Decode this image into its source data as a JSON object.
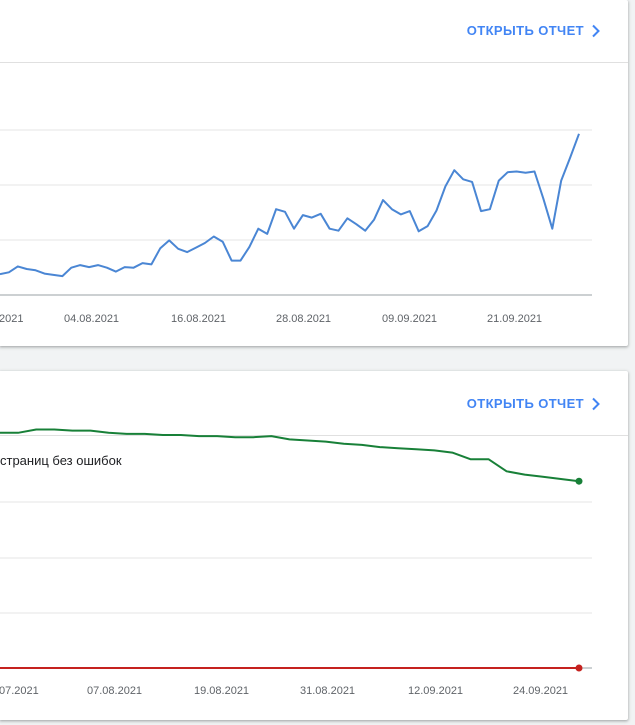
{
  "cards": [
    {
      "report_link": "ОТКРЫТЬ ОТЧЕТ",
      "chart_data": {
        "type": "line",
        "x_tick_labels": [
          "2021",
          "04.08.2021",
          "16.08.2021",
          "28.08.2021",
          "09.09.2021",
          "21.09.2021"
        ],
        "grid": true,
        "series": [
          {
            "color": "#4a86d4",
            "values": [
              0.6,
              0.75,
              1.2,
              1.0,
              0.9,
              0.65,
              0.55,
              0.45,
              1.1,
              1.3,
              1.15,
              1.3,
              1.1,
              0.8,
              1.15,
              1.1,
              1.45,
              1.35,
              2.6,
              3.2,
              2.55,
              2.3,
              2.65,
              3.0,
              3.5,
              3.1,
              1.65,
              1.65,
              2.7,
              4.1,
              3.7,
              5.6,
              5.4,
              4.1,
              5.15,
              4.95,
              5.25,
              4.1,
              3.95,
              4.9,
              4.45,
              3.95,
              4.8,
              6.3,
              5.6,
              5.2,
              5.45,
              3.9,
              4.3,
              5.5,
              7.35,
              8.6,
              7.9,
              7.7,
              5.45,
              5.6,
              7.8,
              8.45,
              8.5,
              8.4,
              8.5,
              6.4,
              4.1,
              7.8,
              9.55,
              11.4
            ]
          }
        ]
      }
    },
    {
      "report_link": "ОТКРЫТЬ ОТЧЕТ",
      "legend": "страниц без ошибок",
      "chart_data": {
        "type": "line",
        "x_tick_labels": [
          "07.2021",
          "07.08.2021",
          "19.08.2021",
          "31.08.2021",
          "12.09.2021",
          "24.09.2021"
        ],
        "grid": true,
        "series": [
          {
            "color": "#188038",
            "values": [
              10.6,
              10.6,
              10.75,
              10.75,
              10.7,
              10.7,
              10.6,
              10.55,
              10.55,
              10.5,
              10.5,
              10.45,
              10.45,
              10.4,
              10.4,
              10.45,
              10.3,
              10.25,
              10.2,
              10.1,
              10.05,
              9.95,
              9.9,
              9.85,
              9.8,
              9.7,
              9.4,
              9.4,
              8.85,
              8.7,
              8.6,
              8.5,
              8.4
            ]
          },
          {
            "color": "#c5221f",
            "values": [
              0,
              0
            ]
          }
        ]
      }
    }
  ]
}
